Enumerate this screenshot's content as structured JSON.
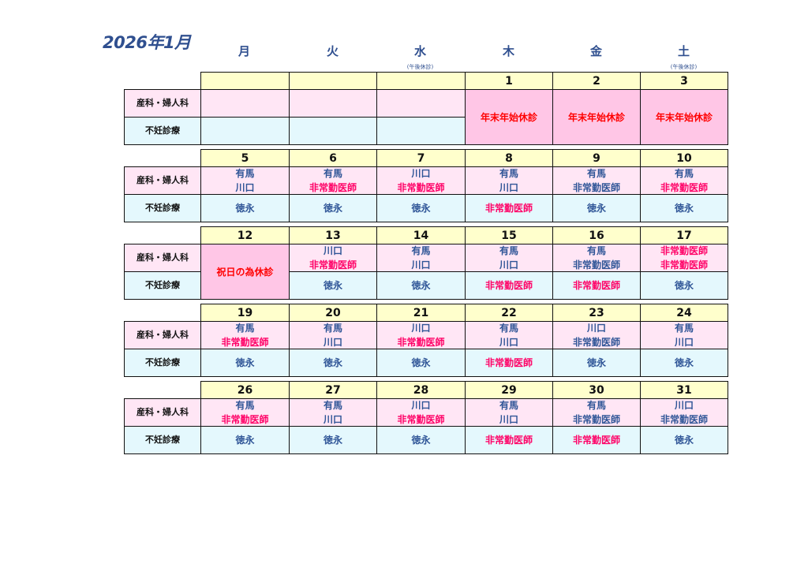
{
  "title": "2026年1月",
  "weekdays": [
    {
      "label": "月",
      "note": ""
    },
    {
      "label": "火",
      "note": ""
    },
    {
      "label": "水",
      "note": "(午後休診)"
    },
    {
      "label": "木",
      "note": ""
    },
    {
      "label": "金",
      "note": ""
    },
    {
      "label": "土",
      "note": "(午後休診)"
    }
  ],
  "row_labels": {
    "obstetrics": "産科・婦人科",
    "fertility": "不妊診療"
  },
  "colors": {
    "doctor": "#2f5597",
    "part_time": "#ff0066",
    "closed": "#ff0000"
  },
  "weeks": [
    {
      "days": [
        {
          "date": "",
          "obs": [],
          "fert": []
        },
        {
          "date": "",
          "obs": [],
          "fert": []
        },
        {
          "date": "",
          "obs": [],
          "fert": []
        },
        {
          "date": "1",
          "closed": "年末年始休診"
        },
        {
          "date": "2",
          "closed": "年末年始休診"
        },
        {
          "date": "3",
          "closed": "年末年始休診"
        }
      ]
    },
    {
      "days": [
        {
          "date": "5",
          "obs": [
            {
              "t": "有馬",
              "c": "doctor"
            },
            {
              "t": "川口",
              "c": "doctor"
            }
          ],
          "fert": [
            {
              "t": "徳永",
              "c": "doctor"
            }
          ]
        },
        {
          "date": "6",
          "obs": [
            {
              "t": "有馬",
              "c": "doctor"
            },
            {
              "t": "非常勤医師",
              "c": "part_time"
            }
          ],
          "fert": [
            {
              "t": "徳永",
              "c": "doctor"
            }
          ]
        },
        {
          "date": "7",
          "obs": [
            {
              "t": "川口",
              "c": "doctor"
            },
            {
              "t": "非常勤医師",
              "c": "part_time"
            }
          ],
          "fert": [
            {
              "t": "徳永",
              "c": "doctor"
            }
          ]
        },
        {
          "date": "8",
          "obs": [
            {
              "t": "有馬",
              "c": "doctor"
            },
            {
              "t": "川口",
              "c": "doctor"
            }
          ],
          "fert": [
            {
              "t": "非常勤医師",
              "c": "part_time"
            }
          ]
        },
        {
          "date": "9",
          "obs": [
            {
              "t": "有馬",
              "c": "doctor"
            },
            {
              "t": "非常勤医師",
              "c": "doctor"
            }
          ],
          "fert": [
            {
              "t": "徳永",
              "c": "doctor"
            }
          ]
        },
        {
          "date": "10",
          "obs": [
            {
              "t": "有馬",
              "c": "doctor"
            },
            {
              "t": "非常勤医師",
              "c": "part_time"
            }
          ],
          "fert": [
            {
              "t": "徳永",
              "c": "doctor"
            }
          ]
        }
      ]
    },
    {
      "days": [
        {
          "date": "12",
          "closed": "祝日の為休診"
        },
        {
          "date": "13",
          "obs": [
            {
              "t": "川口",
              "c": "doctor"
            },
            {
              "t": "非常勤医師",
              "c": "part_time"
            }
          ],
          "fert": [
            {
              "t": "徳永",
              "c": "doctor"
            }
          ]
        },
        {
          "date": "14",
          "obs": [
            {
              "t": "有馬",
              "c": "doctor"
            },
            {
              "t": "川口",
              "c": "doctor"
            }
          ],
          "fert": [
            {
              "t": "徳永",
              "c": "doctor"
            }
          ]
        },
        {
          "date": "15",
          "obs": [
            {
              "t": "有馬",
              "c": "doctor"
            },
            {
              "t": "川口",
              "c": "doctor"
            }
          ],
          "fert": [
            {
              "t": "非常勤医師",
              "c": "part_time"
            }
          ]
        },
        {
          "date": "16",
          "obs": [
            {
              "t": "有馬",
              "c": "doctor"
            },
            {
              "t": "非常勤医師",
              "c": "doctor"
            }
          ],
          "fert": [
            {
              "t": "非常勤医師",
              "c": "part_time"
            }
          ]
        },
        {
          "date": "17",
          "obs": [
            {
              "t": "非常勤医師",
              "c": "part_time"
            },
            {
              "t": "非常勤医師",
              "c": "part_time"
            }
          ],
          "fert": [
            {
              "t": "徳永",
              "c": "doctor"
            }
          ]
        }
      ]
    },
    {
      "days": [
        {
          "date": "19",
          "obs": [
            {
              "t": "有馬",
              "c": "doctor"
            },
            {
              "t": "非常勤医師",
              "c": "part_time"
            }
          ],
          "fert": [
            {
              "t": "徳永",
              "c": "doctor"
            }
          ]
        },
        {
          "date": "20",
          "obs": [
            {
              "t": "有馬",
              "c": "doctor"
            },
            {
              "t": "川口",
              "c": "doctor"
            }
          ],
          "fert": [
            {
              "t": "徳永",
              "c": "doctor"
            }
          ]
        },
        {
          "date": "21",
          "obs": [
            {
              "t": "川口",
              "c": "doctor"
            },
            {
              "t": "非常勤医師",
              "c": "part_time"
            }
          ],
          "fert": [
            {
              "t": "徳永",
              "c": "doctor"
            }
          ]
        },
        {
          "date": "22",
          "obs": [
            {
              "t": "有馬",
              "c": "doctor"
            },
            {
              "t": "川口",
              "c": "doctor"
            }
          ],
          "fert": [
            {
              "t": "非常勤医師",
              "c": "part_time"
            }
          ]
        },
        {
          "date": "23",
          "obs": [
            {
              "t": "川口",
              "c": "doctor"
            },
            {
              "t": "非常勤医師",
              "c": "doctor"
            }
          ],
          "fert": [
            {
              "t": "徳永",
              "c": "doctor"
            }
          ]
        },
        {
          "date": "24",
          "obs": [
            {
              "t": "有馬",
              "c": "doctor"
            },
            {
              "t": "川口",
              "c": "doctor"
            }
          ],
          "fert": [
            {
              "t": "徳永",
              "c": "doctor"
            }
          ]
        }
      ]
    },
    {
      "days": [
        {
          "date": "26",
          "obs": [
            {
              "t": "有馬",
              "c": "doctor"
            },
            {
              "t": "非常勤医師",
              "c": "part_time"
            }
          ],
          "fert": [
            {
              "t": "徳永",
              "c": "doctor"
            }
          ]
        },
        {
          "date": "27",
          "obs": [
            {
              "t": "有馬",
              "c": "doctor"
            },
            {
              "t": "川口",
              "c": "doctor"
            }
          ],
          "fert": [
            {
              "t": "徳永",
              "c": "doctor"
            }
          ]
        },
        {
          "date": "28",
          "obs": [
            {
              "t": "川口",
              "c": "doctor"
            },
            {
              "t": "非常勤医師",
              "c": "part_time"
            }
          ],
          "fert": [
            {
              "t": "徳永",
              "c": "doctor"
            }
          ]
        },
        {
          "date": "29",
          "obs": [
            {
              "t": "有馬",
              "c": "doctor"
            },
            {
              "t": "川口",
              "c": "doctor"
            }
          ],
          "fert": [
            {
              "t": "非常勤医師",
              "c": "part_time"
            }
          ]
        },
        {
          "date": "30",
          "obs": [
            {
              "t": "有馬",
              "c": "doctor"
            },
            {
              "t": "非常勤医師",
              "c": "doctor"
            }
          ],
          "fert": [
            {
              "t": "非常勤医師",
              "c": "part_time"
            }
          ]
        },
        {
          "date": "31",
          "obs": [
            {
              "t": "川口",
              "c": "doctor"
            },
            {
              "t": "非常勤医師",
              "c": "doctor"
            }
          ],
          "fert": [
            {
              "t": "徳永",
              "c": "doctor"
            }
          ]
        }
      ]
    }
  ]
}
